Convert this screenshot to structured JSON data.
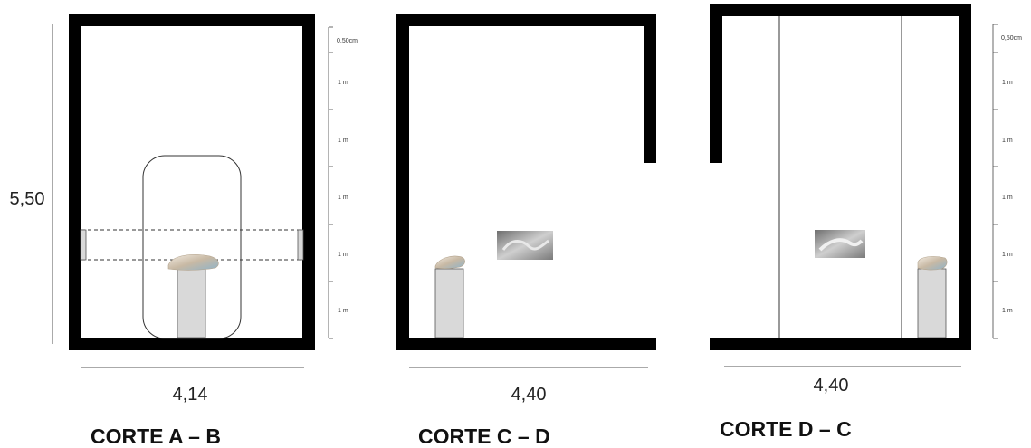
{
  "sections": [
    {
      "title": "CORTE A – B",
      "width_label": "4,14",
      "height_label": "5,50",
      "scale_labels": [
        "0,50cm",
        "1 m",
        "1 m",
        "1 m",
        "1 m",
        "1 m"
      ]
    },
    {
      "title": "CORTE C – D",
      "width_label": "4,40"
    },
    {
      "title": "CORTE D – C",
      "width_label": "4,40",
      "scale_labels": [
        "0,50cm",
        "1 m",
        "1 m",
        "1 m",
        "1 m",
        "1 m"
      ]
    }
  ],
  "colors": {
    "wall": "#000000",
    "pedestal": "#d9d9d9",
    "photo": "#9a9a9a"
  }
}
